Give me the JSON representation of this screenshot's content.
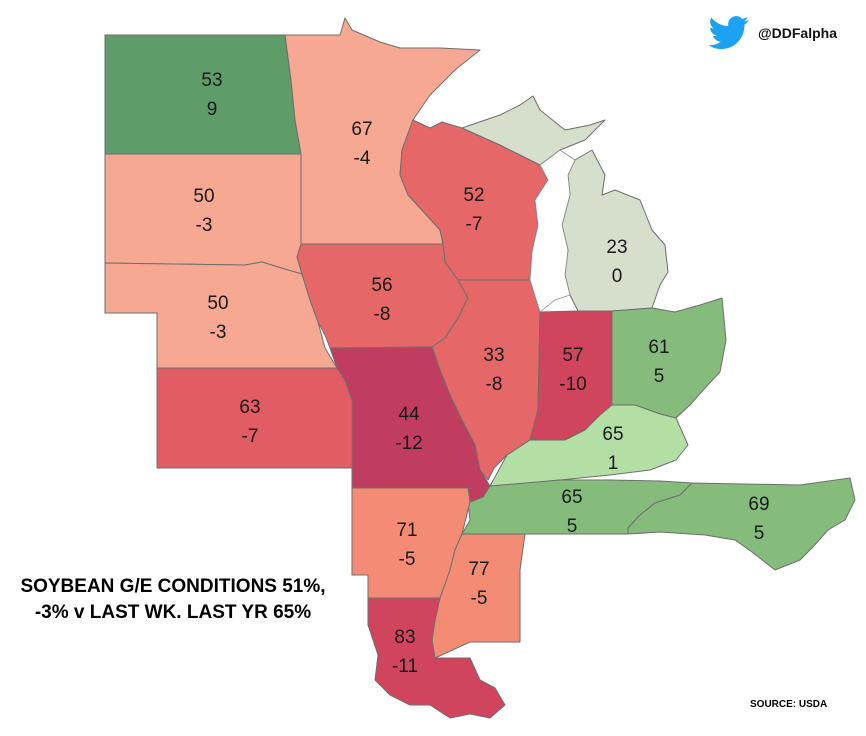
{
  "title": {
    "line1": "SOYBEAN G/E CONDITIONS 51%,",
    "line2": "-3% v LAST WK. LAST YR 65%"
  },
  "social": {
    "handle": "@DDFalpha",
    "icon": "twitter-bird-icon"
  },
  "source": "SOURCE: USDA",
  "colors": {
    "dark_green": "#5e9c6a",
    "mid_green": "#85bc7b",
    "light_green": "#b3dfa5",
    "pale_green": "#d5dfcc",
    "light_salmon": "#f6a893",
    "salmon": "#f49a84",
    "coral": "#f48c75",
    "red": "#e56767",
    "red_dark": "#e25d63",
    "crimson": "#d0455d",
    "wine": "#c13d5f",
    "twitter_blue": "#1da1f2"
  },
  "states": {
    "nd": {
      "value": "53",
      "change": "9"
    },
    "mn": {
      "value": "67",
      "change": "-4"
    },
    "sd": {
      "value": "50",
      "change": "-3"
    },
    "wi": {
      "value": "52",
      "change": "-7"
    },
    "mi": {
      "value": "23",
      "change": "0"
    },
    "ne": {
      "value": "50",
      "change": "-3"
    },
    "ia": {
      "value": "56",
      "change": "-8"
    },
    "il": {
      "value": "33",
      "change": "-8"
    },
    "in": {
      "value": "57",
      "change": "-10"
    },
    "oh": {
      "value": "61",
      "change": "5"
    },
    "ks": {
      "value": "63",
      "change": "-7"
    },
    "mo": {
      "value": "44",
      "change": "-12"
    },
    "ky": {
      "value": "65",
      "change": "1"
    },
    "tn": {
      "value": "65",
      "change": "5"
    },
    "nc": {
      "value": "69",
      "change": "5"
    },
    "ar": {
      "value": "71",
      "change": "-5"
    },
    "ms": {
      "value": "77",
      "change": "-5"
    },
    "la": {
      "value": "83",
      "change": "-11"
    }
  }
}
